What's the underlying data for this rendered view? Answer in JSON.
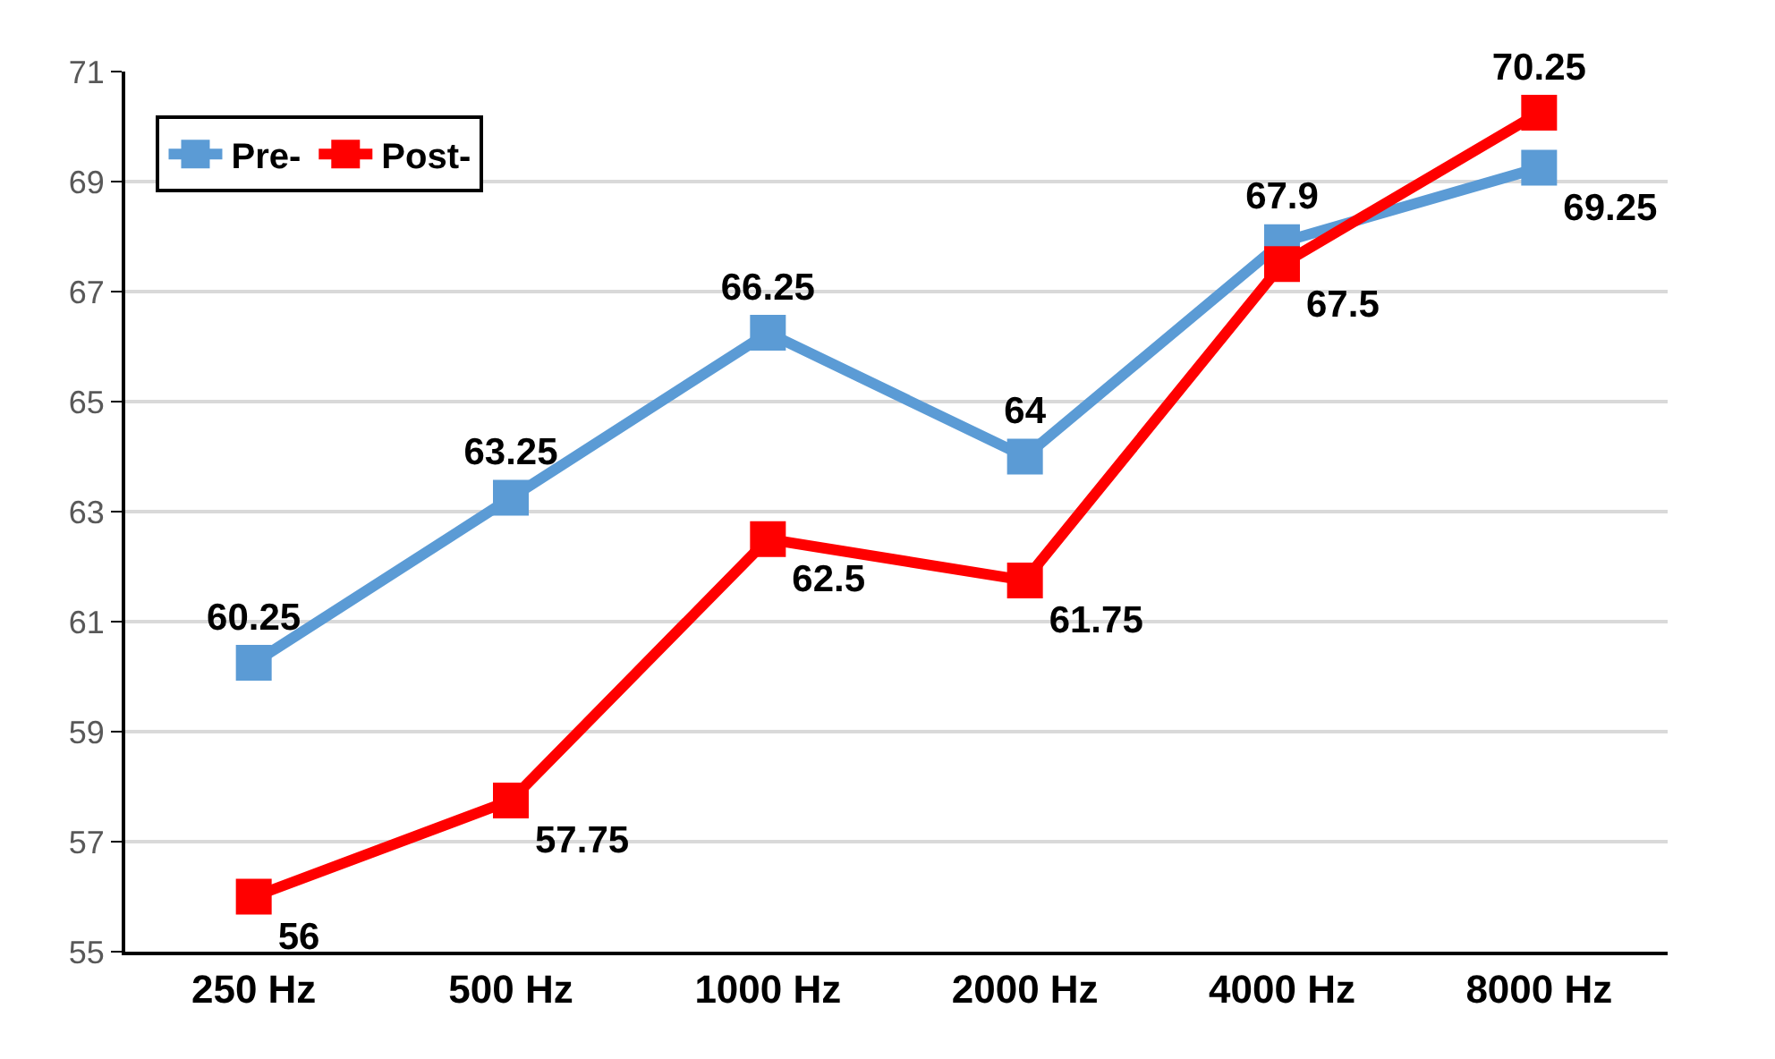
{
  "chart_data": {
    "type": "line",
    "categories": [
      "250 Hz",
      "500 Hz",
      "1000 Hz",
      "2000 Hz",
      "4000 Hz",
      "8000 Hz"
    ],
    "series": [
      {
        "name": "Pre-",
        "color": "#5b9bd5",
        "values": [
          60.25,
          63.25,
          66.25,
          64,
          67.9,
          69.25
        ]
      },
      {
        "name": "Post-",
        "color": "#ff0000",
        "values": [
          56,
          57.75,
          62.5,
          61.75,
          67.5,
          70.25
        ]
      }
    ],
    "ylim": [
      55,
      71
    ],
    "yticks": [
      55,
      57,
      59,
      61,
      63,
      65,
      67,
      69,
      71
    ],
    "grid": "y",
    "legend": "top left",
    "marker": "square",
    "line_style": "solid",
    "data_labels": true
  }
}
